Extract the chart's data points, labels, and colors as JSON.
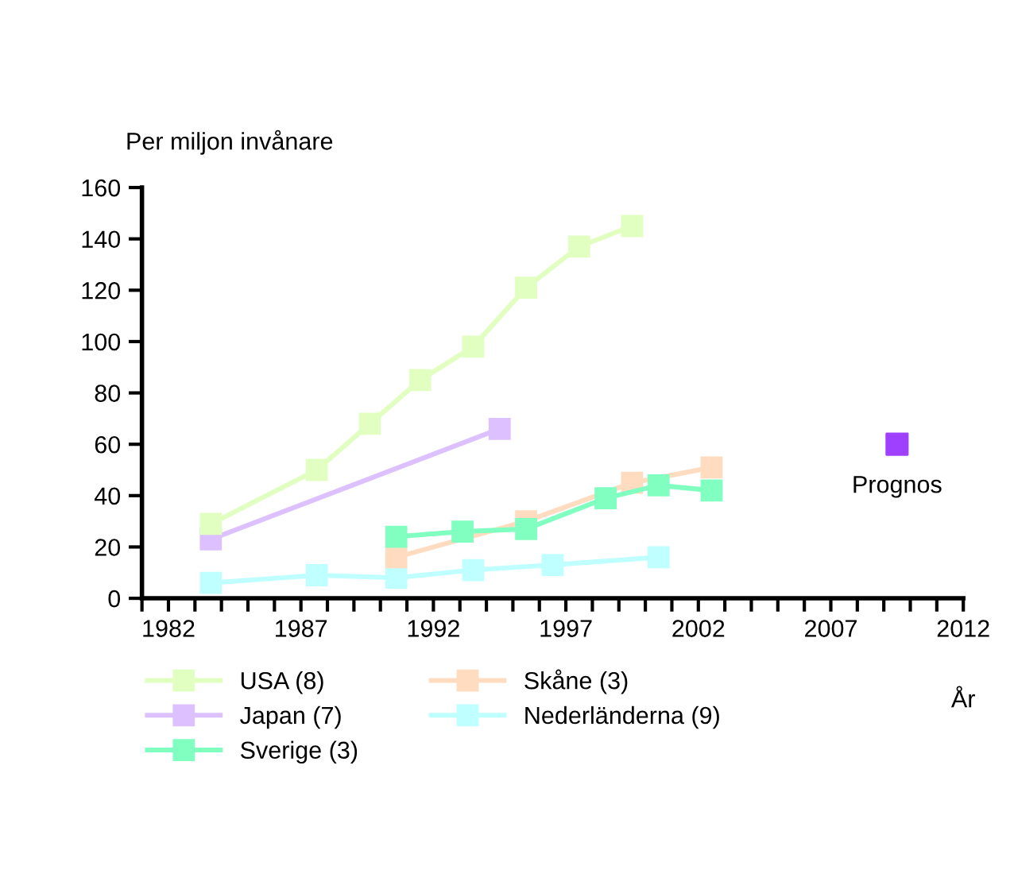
{
  "chart_data": {
    "type": "line",
    "ylabel": "Per miljon invånare",
    "xlabel": "År",
    "xlim": [
      1981,
      2012
    ],
    "xticks": [
      1982,
      1987,
      1992,
      1997,
      2002,
      2007,
      2012
    ],
    "ylim": [
      0,
      160
    ],
    "yticks": [
      0,
      20,
      40,
      60,
      80,
      100,
      120,
      140,
      160
    ],
    "marker": "square",
    "grid": false,
    "legend": "bottom",
    "series": [
      {
        "name": "USA (8)",
        "color": "#e0ffc0",
        "x": [
          1983.6,
          1987.6,
          1989.6,
          1991.5,
          1993.5,
          1995.5,
          1997.5,
          1999.5
        ],
        "values": [
          29,
          50,
          68,
          85,
          98,
          121,
          137,
          145
        ]
      },
      {
        "name": "Japan (7)",
        "color": "#dcc0ff",
        "x": [
          1983.6,
          1994.5
        ],
        "values": [
          23,
          66
        ]
      },
      {
        "name": "Sverige (3)",
        "color": "#80ffc0",
        "x": [
          1990.6,
          1993.1,
          1995.5,
          1998.5,
          2000.5,
          2002.5
        ],
        "values": [
          24,
          26,
          27,
          39,
          44,
          42
        ]
      },
      {
        "name": "Skåne (3)",
        "color": "#ffdcc0",
        "x": [
          1990.6,
          1995.5,
          1999.5,
          2002.5
        ],
        "values": [
          16,
          30,
          45,
          51
        ]
      },
      {
        "name": "Nederländerna (9)",
        "color": "#c0ffff",
        "x": [
          1983.6,
          1987.6,
          1990.6,
          1993.5,
          1996.5,
          2000.5
        ],
        "values": [
          6,
          9,
          8,
          11,
          13,
          16
        ]
      },
      {
        "name": "Prognos",
        "type": "scatter",
        "color": "#a040ff",
        "x": [
          2009.5
        ],
        "values": [
          60
        ]
      }
    ]
  }
}
